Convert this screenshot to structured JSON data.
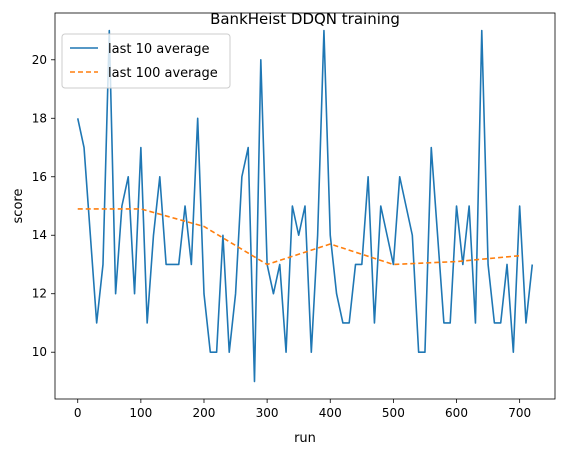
{
  "chart_data": {
    "type": "line",
    "title": "BankHeist DDQN training",
    "xlabel": "run",
    "ylabel": "score",
    "xlim": [
      -36,
      756
    ],
    "ylim": [
      8.4,
      21.6
    ],
    "xticks": [
      0,
      100,
      200,
      300,
      400,
      500,
      600,
      700
    ],
    "yticks": [
      10,
      12,
      14,
      16,
      18,
      20
    ],
    "grid": false,
    "legend_position": "top-left",
    "series": [
      {
        "name": "last 10 average",
        "color": "#1f77b4",
        "style": "solid",
        "x": [
          0,
          10,
          20,
          30,
          40,
          50,
          60,
          70,
          80,
          90,
          100,
          110,
          120,
          130,
          140,
          150,
          160,
          170,
          180,
          190,
          200,
          210,
          220,
          230,
          240,
          250,
          260,
          270,
          280,
          290,
          300,
          310,
          320,
          330,
          340,
          350,
          360,
          370,
          380,
          390,
          400,
          410,
          420,
          430,
          440,
          450,
          460,
          470,
          480,
          490,
          500,
          510,
          520,
          530,
          540,
          550,
          560,
          570,
          580,
          590,
          600,
          610,
          620,
          630,
          640,
          650,
          660,
          670,
          680,
          690,
          700,
          710,
          720
        ],
        "y": [
          18,
          17,
          14,
          11,
          13,
          21,
          12,
          15,
          16,
          12,
          17,
          11,
          14,
          16,
          13,
          13,
          13,
          15,
          13,
          18,
          12,
          10,
          10,
          14,
          10,
          12,
          16,
          17,
          9,
          20,
          13,
          12,
          13,
          10,
          15,
          14,
          15,
          10,
          14,
          21,
          14,
          12,
          11,
          11,
          13,
          13,
          16,
          11,
          15,
          14,
          13,
          16,
          15,
          14,
          10,
          10,
          17,
          14,
          11,
          11,
          15,
          13,
          15,
          11,
          21,
          13,
          11,
          11,
          13,
          10,
          15,
          11,
          13
        ]
      },
      {
        "name": "last 100 average",
        "color": "#ff7f0e",
        "style": "dashed",
        "x": [
          0,
          100,
          200,
          300,
          400,
          500,
          600,
          700
        ],
        "y": [
          14.9,
          14.9,
          14.3,
          13.0,
          13.7,
          13.0,
          13.1,
          13.3
        ]
      }
    ]
  }
}
